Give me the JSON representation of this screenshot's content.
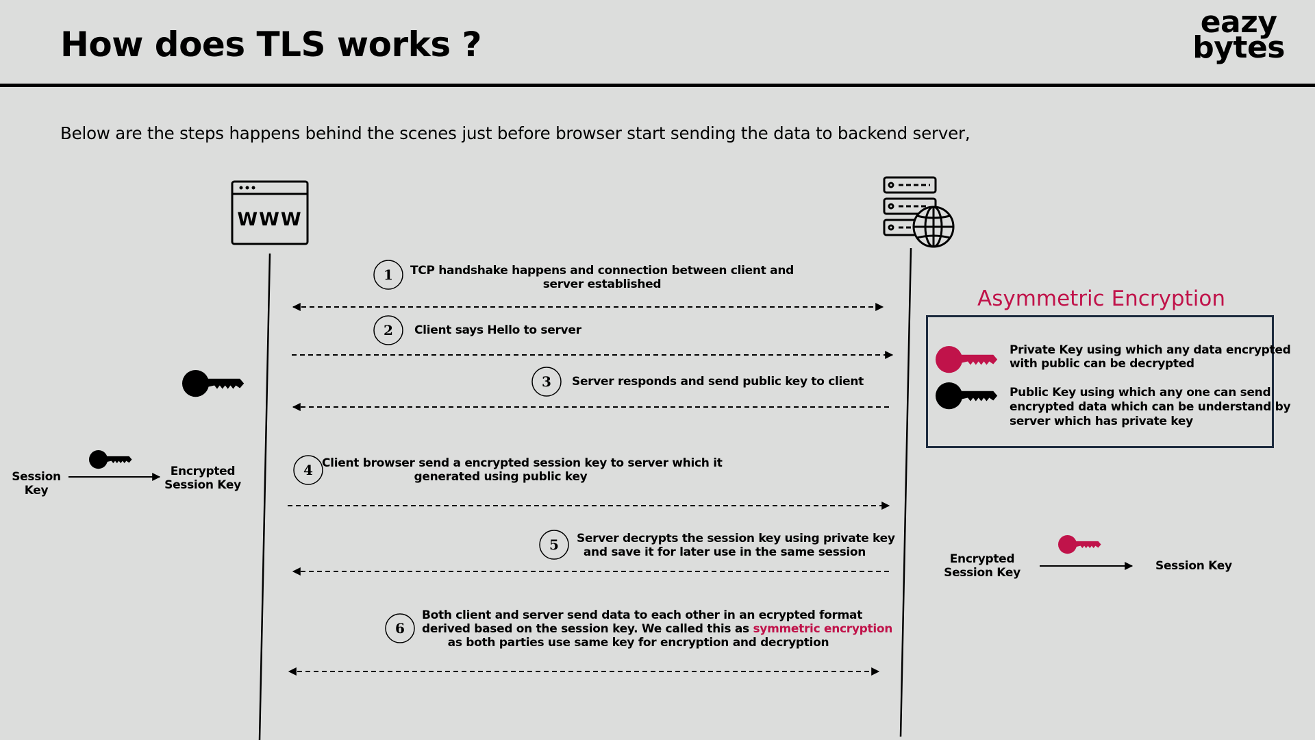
{
  "header": {
    "title": "How does TLS works ?",
    "logo_line1": "eazy",
    "logo_line2": "bytes"
  },
  "subtitle": "Below are the steps happens behind the scenes just before browser start sending the data to backend server,",
  "icons": {
    "client": "www-browser-icon",
    "server": "server-globe-icon",
    "public_key": "black-key-icon",
    "private_key": "crimson-key-icon"
  },
  "colors": {
    "background": "#dcdddc",
    "accent": "#c0134a",
    "box_border": "#1d2b3e"
  },
  "steps": [
    {
      "num": "1",
      "line1": "TCP handshake happens and connection between client and",
      "line2": "server established",
      "direction": "both"
    },
    {
      "num": "2",
      "line1": "Client says Hello to server",
      "direction": "to-server"
    },
    {
      "num": "3",
      "line1": "Server responds and send public key to client",
      "direction": "to-client"
    },
    {
      "num": "4",
      "line1": "Client browser send a encrypted session key to server which it",
      "line2": "generated using public key",
      "direction": "to-server"
    },
    {
      "num": "5",
      "line1": "Server decrypts the session key using private key",
      "line2": "and save it for later use in the same session",
      "direction": "to-client"
    },
    {
      "num": "6",
      "line1": "Both client and server send data to each other in an ecrypted format",
      "line2_prefix": "derived based on the session key. We called this as ",
      "line2_accent": "symmetric encryption",
      "line3": "as both parties use same key for encryption and decryption",
      "direction": "both"
    }
  ],
  "client_side": {
    "session_key_line1": "Session",
    "session_key_line2": "Key",
    "encrypted_line1": "Encrypted",
    "encrypted_line2": "Session Key"
  },
  "server_side": {
    "encrypted_line1": "Encrypted",
    "encrypted_line2": "Session Key",
    "session_key": "Session Key"
  },
  "asymmetric": {
    "title": "Asymmetric Encryption",
    "private_line1": "Private Key using which any data encrypted",
    "private_line2": "with public can be decrypted",
    "public_line1": "Public Key using which any one can send",
    "public_line2": "encrypted data which can be understand by",
    "public_line3": "server which has private key"
  }
}
